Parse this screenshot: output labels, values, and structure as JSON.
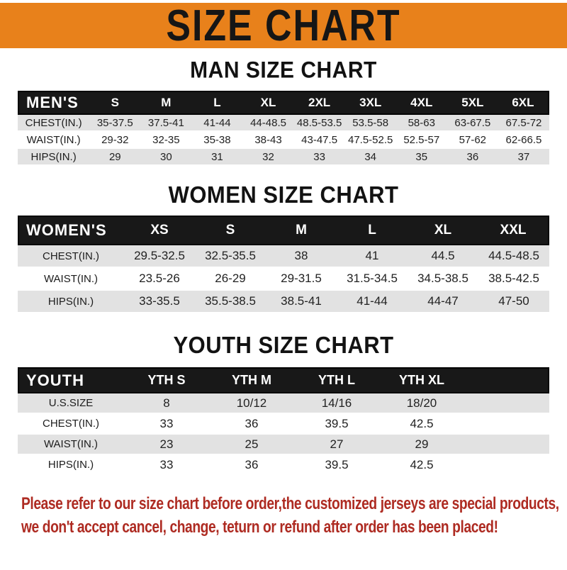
{
  "banner": {
    "title": "SIZE CHART"
  },
  "colors": {
    "banner_bg": "#E8811B",
    "header_bar": "#181818",
    "row_gray": "#E2E2E2",
    "footer_red": "#AE2B22"
  },
  "sections": [
    {
      "id": "men",
      "heading": "MAN SIZE CHART",
      "header_label": "MEN'S",
      "columns": [
        "S",
        "M",
        "L",
        "XL",
        "2XL",
        "3XL",
        "4XL",
        "5XL",
        "6XL"
      ],
      "rows": [
        {
          "label": "CHEST(IN.)",
          "values": [
            "35-37.5",
            "37.5-41",
            "41-44",
            "44-48.5",
            "48.5-53.5",
            "53.5-58",
            "58-63",
            "63-67.5",
            "67.5-72"
          ]
        },
        {
          "label": "WAIST(IN.)",
          "values": [
            "29-32",
            "32-35",
            "35-38",
            "38-43",
            "43-47.5",
            "47.5-52.5",
            "52.5-57",
            "57-62",
            "62-66.5"
          ]
        },
        {
          "label": "HIPS(IN.)",
          "values": [
            "29",
            "30",
            "31",
            "32",
            "33",
            "34",
            "35",
            "36",
            "37"
          ]
        }
      ]
    },
    {
      "id": "women",
      "heading": "WOMEN SIZE CHART",
      "header_label": "WOMEN'S",
      "columns": [
        "XS",
        "S",
        "M",
        "L",
        "XL",
        "XXL"
      ],
      "rows": [
        {
          "label": "CHEST(IN.)",
          "values": [
            "29.5-32.5",
            "32.5-35.5",
            "38",
            "41",
            "44.5",
            "44.5-48.5"
          ]
        },
        {
          "label": "WAIST(IN.)",
          "values": [
            "23.5-26",
            "26-29",
            "29-31.5",
            "31.5-34.5",
            "34.5-38.5",
            "38.5-42.5"
          ]
        },
        {
          "label": "HIPS(IN.)",
          "values": [
            "33-35.5",
            "35.5-38.5",
            "38.5-41",
            "41-44",
            "44-47",
            "47-50"
          ]
        }
      ]
    },
    {
      "id": "youth",
      "heading": "YOUTH SIZE CHART",
      "header_label": "YOUTH",
      "columns": [
        "YTH S",
        "YTH M",
        "YTH L",
        "YTH XL"
      ],
      "rows": [
        {
          "label": "U.S.SIZE",
          "values": [
            "8",
            "10/12",
            "14/16",
            "18/20"
          ]
        },
        {
          "label": "CHEST(IN.)",
          "values": [
            "33",
            "36",
            "39.5",
            "42.5"
          ]
        },
        {
          "label": "WAIST(IN.)",
          "values": [
            "23",
            "25",
            "27",
            "29"
          ]
        },
        {
          "label": "HIPS(IN.)",
          "values": [
            "33",
            "36",
            "39.5",
            "42.5"
          ]
        }
      ]
    }
  ],
  "footer": {
    "line1": "Please refer to our size chart before order,the customized jerseys are special products,",
    "line2": "we don't accept cancel, change, teturn or refund after order has been placed!"
  }
}
